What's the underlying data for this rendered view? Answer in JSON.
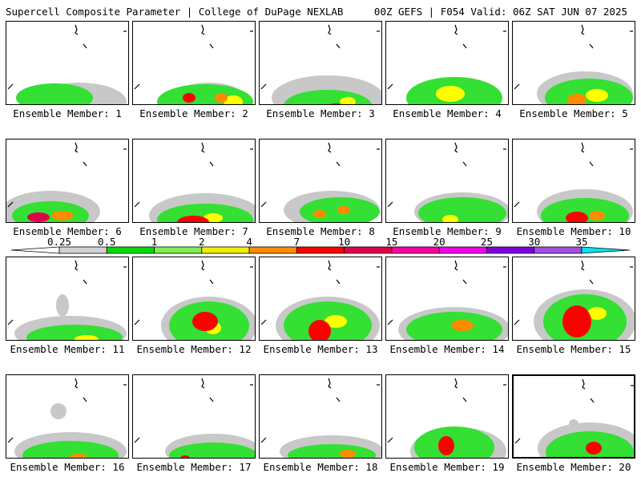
{
  "header": {
    "left_title": "Supercell Composite Parameter | College of DuPage NEXLAB",
    "right_title": "00Z GEFS | F054 Valid: 06Z SAT JUN 07 2025"
  },
  "panels": [
    {
      "label": "Ensemble Member: 1",
      "blobs": [
        [
          60,
          95,
          48,
          18,
          2
        ],
        [
          70,
          112,
          30,
          9,
          4
        ],
        [
          85,
          117,
          18,
          6,
          6
        ],
        [
          125,
          115,
          22,
          10,
          2
        ],
        [
          90,
          100,
          60,
          24,
          1
        ]
      ]
    },
    {
      "label": "Ensemble Member: 2",
      "blobs": [
        [
          90,
          100,
          60,
          22,
          2
        ],
        [
          70,
          95,
          8,
          6,
          5
        ],
        [
          110,
          95,
          8,
          6,
          4
        ],
        [
          95,
          90,
          40,
          14,
          1
        ],
        [
          125,
          100,
          12,
          8,
          3
        ]
      ]
    },
    {
      "label": "Ensemble Member: 3",
      "blobs": [
        [
          85,
          105,
          55,
          20,
          2
        ],
        [
          95,
          108,
          14,
          6,
          6
        ],
        [
          70,
          112,
          12,
          5,
          4
        ],
        [
          110,
          100,
          10,
          6,
          3
        ],
        [
          85,
          95,
          70,
          28,
          1
        ]
      ]
    },
    {
      "label": "Ensemble Member: 4",
      "blobs": [
        [
          85,
          95,
          60,
          26,
          2
        ],
        [
          80,
          90,
          18,
          10,
          3
        ],
        [
          85,
          100,
          40,
          15,
          1
        ]
      ]
    },
    {
      "label": "Ensemble Member: 5",
      "blobs": [
        [
          95,
          95,
          55,
          24,
          2
        ],
        [
          80,
          98,
          12,
          8,
          4
        ],
        [
          105,
          92,
          14,
          8,
          3
        ],
        [
          90,
          90,
          60,
          28,
          1
        ]
      ]
    },
    {
      "label": "Ensemble Member: 6",
      "blobs": [
        [
          55,
          95,
          48,
          18,
          2
        ],
        [
          40,
          97,
          14,
          6,
          6
        ],
        [
          70,
          95,
          14,
          6,
          4
        ],
        [
          55,
          90,
          62,
          26,
          1
        ]
      ]
    },
    {
      "label": "Ensemble Member: 7",
      "blobs": [
        [
          90,
          100,
          60,
          20,
          2
        ],
        [
          75,
          103,
          20,
          8,
          5
        ],
        [
          100,
          98,
          12,
          6,
          3
        ],
        [
          90,
          95,
          70,
          28,
          1
        ]
      ]
    },
    {
      "label": "Ensemble Member: 8",
      "blobs": [
        [
          100,
          90,
          50,
          18,
          2
        ],
        [
          75,
          93,
          8,
          5,
          4
        ],
        [
          105,
          88,
          8,
          5,
          4
        ],
        [
          90,
          88,
          60,
          24,
          1
        ]
      ]
    },
    {
      "label": "Ensemble Member: 9",
      "blobs": [
        [
          95,
          92,
          55,
          20,
          2
        ],
        [
          80,
          100,
          10,
          6,
          3
        ],
        [
          95,
          90,
          60,
          24,
          1
        ]
      ]
    },
    {
      "label": "Ensemble Member: 10",
      "blobs": [
        [
          90,
          95,
          55,
          22,
          2
        ],
        [
          80,
          98,
          14,
          8,
          5
        ],
        [
          105,
          95,
          10,
          6,
          4
        ],
        [
          70,
          80,
          10,
          10,
          1
        ],
        [
          90,
          90,
          60,
          28,
          1
        ]
      ]
    },
    {
      "label": "Ensemble Member: 11",
      "blobs": [
        [
          85,
          100,
          60,
          16,
          2
        ],
        [
          100,
          102,
          15,
          5,
          3
        ],
        [
          80,
          95,
          70,
          22,
          1
        ],
        [
          70,
          60,
          8,
          14,
          1
        ]
      ]
    },
    {
      "label": "Ensemble Member: 12",
      "blobs": [
        [
          95,
          85,
          50,
          30,
          2
        ],
        [
          90,
          80,
          16,
          12,
          5
        ],
        [
          100,
          88,
          10,
          8,
          3
        ],
        [
          95,
          85,
          60,
          36,
          1
        ]
      ]
    },
    {
      "label": "Ensemble Member: 13",
      "blobs": [
        [
          85,
          85,
          55,
          30,
          2
        ],
        [
          75,
          92,
          14,
          14,
          5
        ],
        [
          95,
          80,
          14,
          8,
          3
        ],
        [
          85,
          85,
          65,
          36,
          1
        ]
      ]
    },
    {
      "label": "Ensemble Member: 14",
      "blobs": [
        [
          85,
          90,
          60,
          22,
          2
        ],
        [
          95,
          85,
          14,
          7,
          4
        ],
        [
          85,
          90,
          70,
          28,
          1
        ]
      ]
    },
    {
      "label": "Ensemble Member: 15",
      "blobs": [
        [
          90,
          80,
          52,
          34,
          2
        ],
        [
          80,
          80,
          18,
          20,
          5
        ],
        [
          105,
          70,
          12,
          8,
          3
        ],
        [
          90,
          80,
          64,
          40,
          1
        ]
      ]
    },
    {
      "label": "Ensemble Member: 16",
      "blobs": [
        [
          80,
          100,
          60,
          18,
          2
        ],
        [
          90,
          103,
          12,
          5,
          4
        ],
        [
          65,
          45,
          10,
          10,
          1
        ],
        [
          80,
          95,
          70,
          24,
          1
        ]
      ]
    },
    {
      "label": "Ensemble Member: 17",
      "blobs": [
        [
          100,
          100,
          55,
          16,
          2
        ],
        [
          65,
          104,
          6,
          4,
          5
        ],
        [
          100,
          95,
          60,
          22,
          1
        ]
      ]
    },
    {
      "label": "Ensemble Member: 18",
      "blobs": [
        [
          90,
          100,
          55,
          14,
          2
        ],
        [
          110,
          98,
          10,
          5,
          4
        ],
        [
          90,
          95,
          65,
          20,
          1
        ]
      ]
    },
    {
      "label": "Ensemble Member: 19",
      "blobs": [
        [
          85,
          90,
          50,
          26,
          2
        ],
        [
          75,
          88,
          10,
          12,
          5
        ],
        [
          90,
          95,
          60,
          30,
          1
        ]
      ]
    },
    {
      "label": "Ensemble Member: 20",
      "blobs": [
        [
          95,
          95,
          55,
          26,
          2
        ],
        [
          100,
          90,
          10,
          8,
          5
        ],
        [
          95,
          90,
          65,
          32,
          1
        ],
        [
          75,
          60,
          6,
          6,
          1
        ]
      ]
    }
  ],
  "colorbar": {
    "ticks": [
      "0.25",
      "0.5",
      "1",
      "2",
      "4",
      "7",
      "10",
      "15",
      "20",
      "25",
      "30",
      "35"
    ],
    "colors": [
      "#d2d2d2",
      "#00dc00",
      "#7fee4f",
      "#eeee00",
      "#ff8c00",
      "#ff0000",
      "#e0004a",
      "#ff00a0",
      "#ee00ee",
      "#8000e0",
      "#a050e0",
      "#00e5ee"
    ]
  },
  "level_colors": {
    "1": "#c8c8c8",
    "2": "#33e033",
    "3": "#ffff00",
    "4": "#ff8c00",
    "5": "#ff0000",
    "6": "#e0004a"
  }
}
